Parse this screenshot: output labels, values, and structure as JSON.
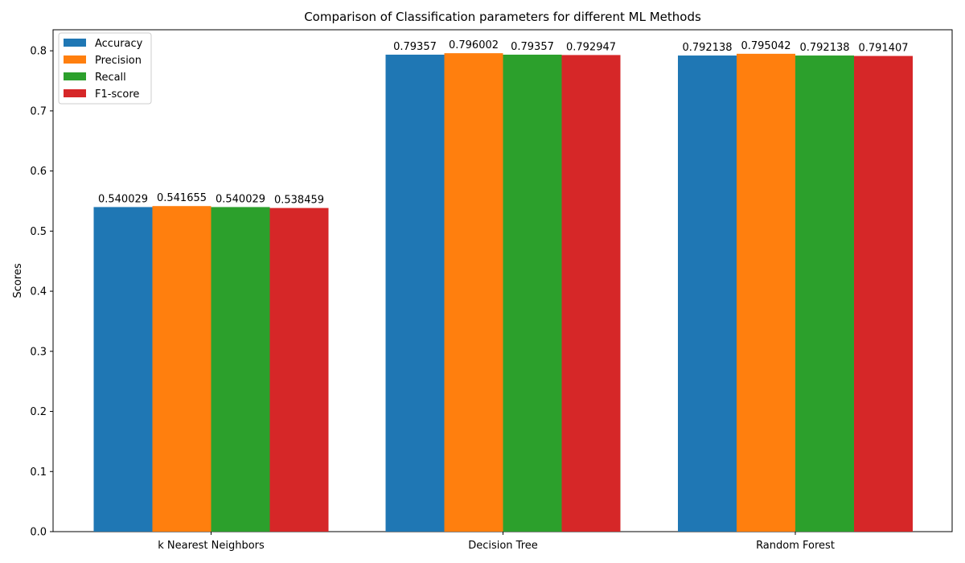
{
  "chart_data": {
    "type": "bar",
    "title": "Comparison of Classification parameters for different ML Methods",
    "xlabel": "",
    "ylabel": "Scores",
    "ylim": [
      0,
      0.835
    ],
    "yticks": [
      0.0,
      0.1,
      0.2,
      0.3,
      0.4,
      0.5,
      0.6,
      0.7,
      0.8
    ],
    "grid": false,
    "legend_position": "top-left",
    "categories": [
      "k Nearest Neighbors",
      "Decision Tree",
      "Random Forest"
    ],
    "series": [
      {
        "name": "Accuracy",
        "color": "#1f77b4",
        "values": [
          0.540029,
          0.79357,
          0.792138
        ],
        "labels": [
          "0.540029",
          "0.79357",
          "0.792138"
        ]
      },
      {
        "name": "Precision",
        "color": "#ff7f0e",
        "values": [
          0.541655,
          0.796002,
          0.795042
        ],
        "labels": [
          "0.541655",
          "0.796002",
          "0.795042"
        ]
      },
      {
        "name": "Recall",
        "color": "#2ca02c",
        "values": [
          0.540029,
          0.79357,
          0.792138
        ],
        "labels": [
          "0.540029",
          "0.79357",
          "0.792138"
        ]
      },
      {
        "name": "F1-score",
        "color": "#d62728",
        "values": [
          0.538459,
          0.792947,
          0.791407
        ],
        "labels": [
          "0.538459",
          "0.792947",
          "0.791407"
        ]
      }
    ]
  }
}
